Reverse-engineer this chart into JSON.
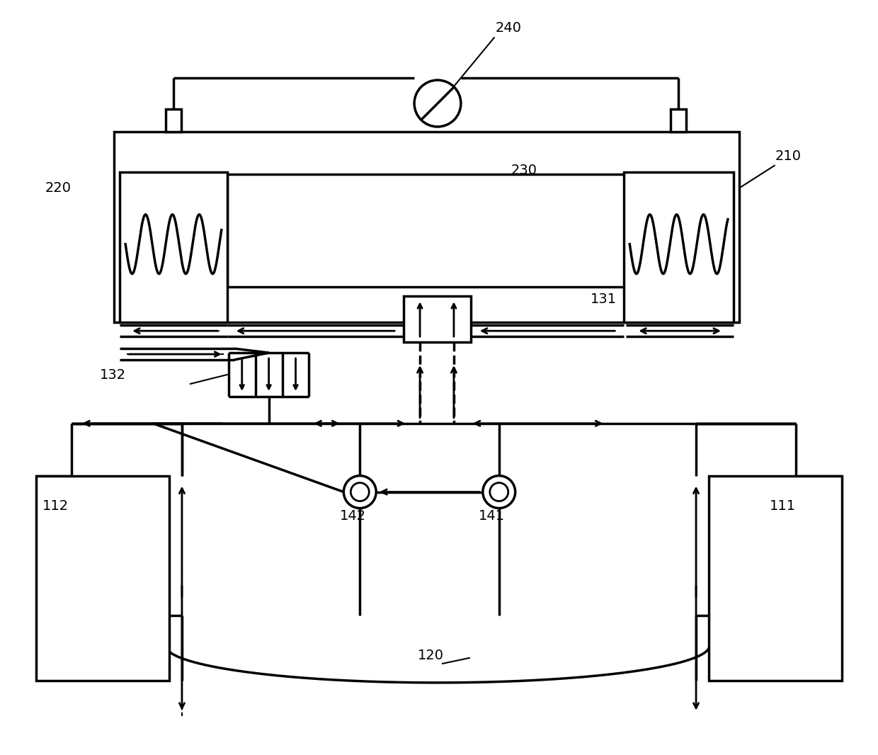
{
  "bg": "#ffffff",
  "lc": "#000000",
  "lw": 2.0,
  "lw_t": 2.5,
  "fig_w": 12.4,
  "fig_h": 10.66,
  "dpi": 100
}
